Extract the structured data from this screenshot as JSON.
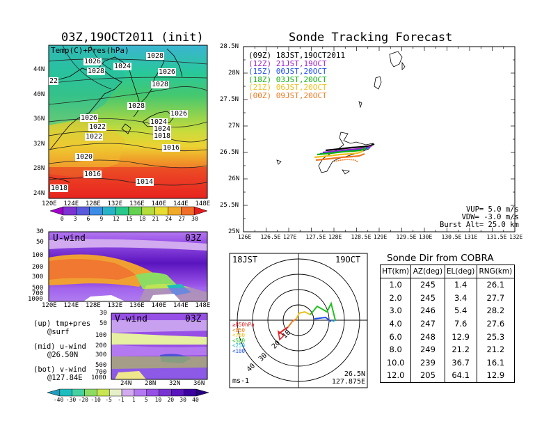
{
  "left_title": "03Z,19OCT2011 (init)",
  "right_title": "Sonde Tracking Forecast",
  "top_map": {
    "label": "Temp(C)+Pres(hPa)",
    "lat_ticks": [
      "44N",
      "40N",
      "36N",
      "32N",
      "28N",
      "24N"
    ],
    "lon_ticks": [
      "120E",
      "124E",
      "128E",
      "132E",
      "136E",
      "140E",
      "144E",
      "148E"
    ],
    "isobars": [
      "1026",
      "1028",
      "1024",
      "1028",
      "1026",
      "22",
      "1028",
      "1028",
      "1026",
      "1026",
      "1024",
      "1022",
      "1024",
      "1022",
      "1018",
      "1016",
      "1020",
      "1016",
      "1014",
      "1018"
    ]
  },
  "temp_colorbar": {
    "ticks": [
      "0",
      "3",
      "6",
      "9",
      "12",
      "15",
      "18",
      "21",
      "24",
      "27",
      "30"
    ],
    "colors": [
      "#a000c8",
      "#7d32d2",
      "#5a5ade",
      "#3c8ce6",
      "#28b4c8",
      "#28c88c",
      "#64d250",
      "#b4dc3c",
      "#e6dc32",
      "#f0aa28",
      "#f06e28",
      "#e61e1e"
    ]
  },
  "uwind": {
    "label": "U-wind",
    "time": "03Z",
    "p_ticks": [
      "30",
      "50",
      "100",
      "200",
      "300",
      "500",
      "700",
      "1000"
    ],
    "lon_ticks": [
      "120E",
      "124E",
      "128E",
      "132E",
      "136E",
      "140E",
      "144E",
      "148E"
    ]
  },
  "vwind": {
    "label": "V-wind",
    "time": "03Z",
    "p_ticks": [
      "30",
      "50",
      "100",
      "200",
      "300",
      "500",
      "700",
      "1000"
    ],
    "lat_ticks": [
      "24N",
      "28N",
      "32N",
      "36N"
    ]
  },
  "notes": {
    "up1": "(up) tmp+pres",
    "up2": "@surf",
    "mid1": "(mid) u-wind",
    "mid2": "@26.50N",
    "bot1": "(bot) v-wind",
    "bot2": "@127.84E"
  },
  "wind_colorbar": {
    "ticks": [
      "-40",
      "-30",
      "-20",
      "-10",
      "-5",
      "-1",
      "1",
      "5",
      "10",
      "20",
      "30",
      "40"
    ],
    "colors": [
      "#1e9ebe",
      "#1ebebe",
      "#46d2a0",
      "#8cdc64",
      "#c8e650",
      "#e6f0c8",
      "#d2aaf0",
      "#b478f0",
      "#9650e6",
      "#7832d2",
      "#5a14be",
      "#3c00a0",
      "#280082"
    ]
  },
  "track": {
    "lat_ticks": [
      "28.5N",
      "28N",
      "27.5N",
      "27N",
      "26.5N",
      "26N",
      "25.5N",
      "25N"
    ],
    "lon_ticks": [
      "126E",
      "126.5E",
      "127E",
      "127.5E",
      "128E",
      "128.5E",
      "129E",
      "129.5E",
      "130E",
      "130.5E",
      "131E",
      "131.5E",
      "132E"
    ],
    "legend": [
      {
        "run": "(09Z)",
        "time": "18JST,19OCT2011",
        "color": "#000000"
      },
      {
        "run": "(12Z)",
        "time": "21JST,19OCT",
        "color": "#a020c8"
      },
      {
        "run": "(15Z)",
        "time": "00JST,20OCT",
        "color": "#2050f0"
      },
      {
        "run": "(18Z)",
        "time": "03JST,20OCT",
        "color": "#10b010"
      },
      {
        "run": "(21Z)",
        "time": "06JST,20OCT",
        "color": "#f0c020"
      },
      {
        "run": "(00Z)",
        "time": "09JST,20OCT",
        "color": "#f07820"
      }
    ],
    "params": [
      "VUP=  5.0  m/s",
      "VDW= -3.0  m/s",
      "Burst Alt= 25.0  km"
    ]
  },
  "polar": {
    "left_label": "18JST",
    "right_label": "19OCT",
    "bottom_left": "ms-1",
    "bottom_right1": "26.5N",
    "bottom_right2": "127.875E",
    "ring_labels": [
      "10",
      "20",
      "30",
      "40"
    ],
    "levels": [
      {
        "t": "≥850hPa",
        "color": "#e02020"
      },
      {
        "t": "<850",
        "color": "#f08020"
      },
      {
        "t": "<700",
        "color": "#e8c020"
      },
      {
        "t": "<500",
        "color": "#20c020"
      },
      {
        "t": "<250",
        "color": "#20b0d0"
      },
      {
        "t": "<100",
        "color": "#2050f0"
      }
    ]
  },
  "sonde_table": {
    "title": "Sonde Dir from COBRA",
    "headers": [
      "HT(km)",
      "AZ(deg)",
      "EL(deg)",
      "RNG(km)"
    ],
    "rows": [
      [
        "1.0",
        "245",
        "1.4",
        "26.1"
      ],
      [
        "2.0",
        "245",
        "3.4",
        "27.7"
      ],
      [
        "3.0",
        "246",
        "5.4",
        "28.2"
      ],
      [
        "4.0",
        "247",
        "7.6",
        "27.6"
      ],
      [
        "6.0",
        "248",
        "12.9",
        "25.3"
      ],
      [
        "8.0",
        "249",
        "21.2",
        "21.2"
      ],
      [
        "10.0",
        "239",
        "36.7",
        "16.1"
      ],
      [
        "12.0",
        "205",
        "64.1",
        "12.9"
      ]
    ]
  }
}
